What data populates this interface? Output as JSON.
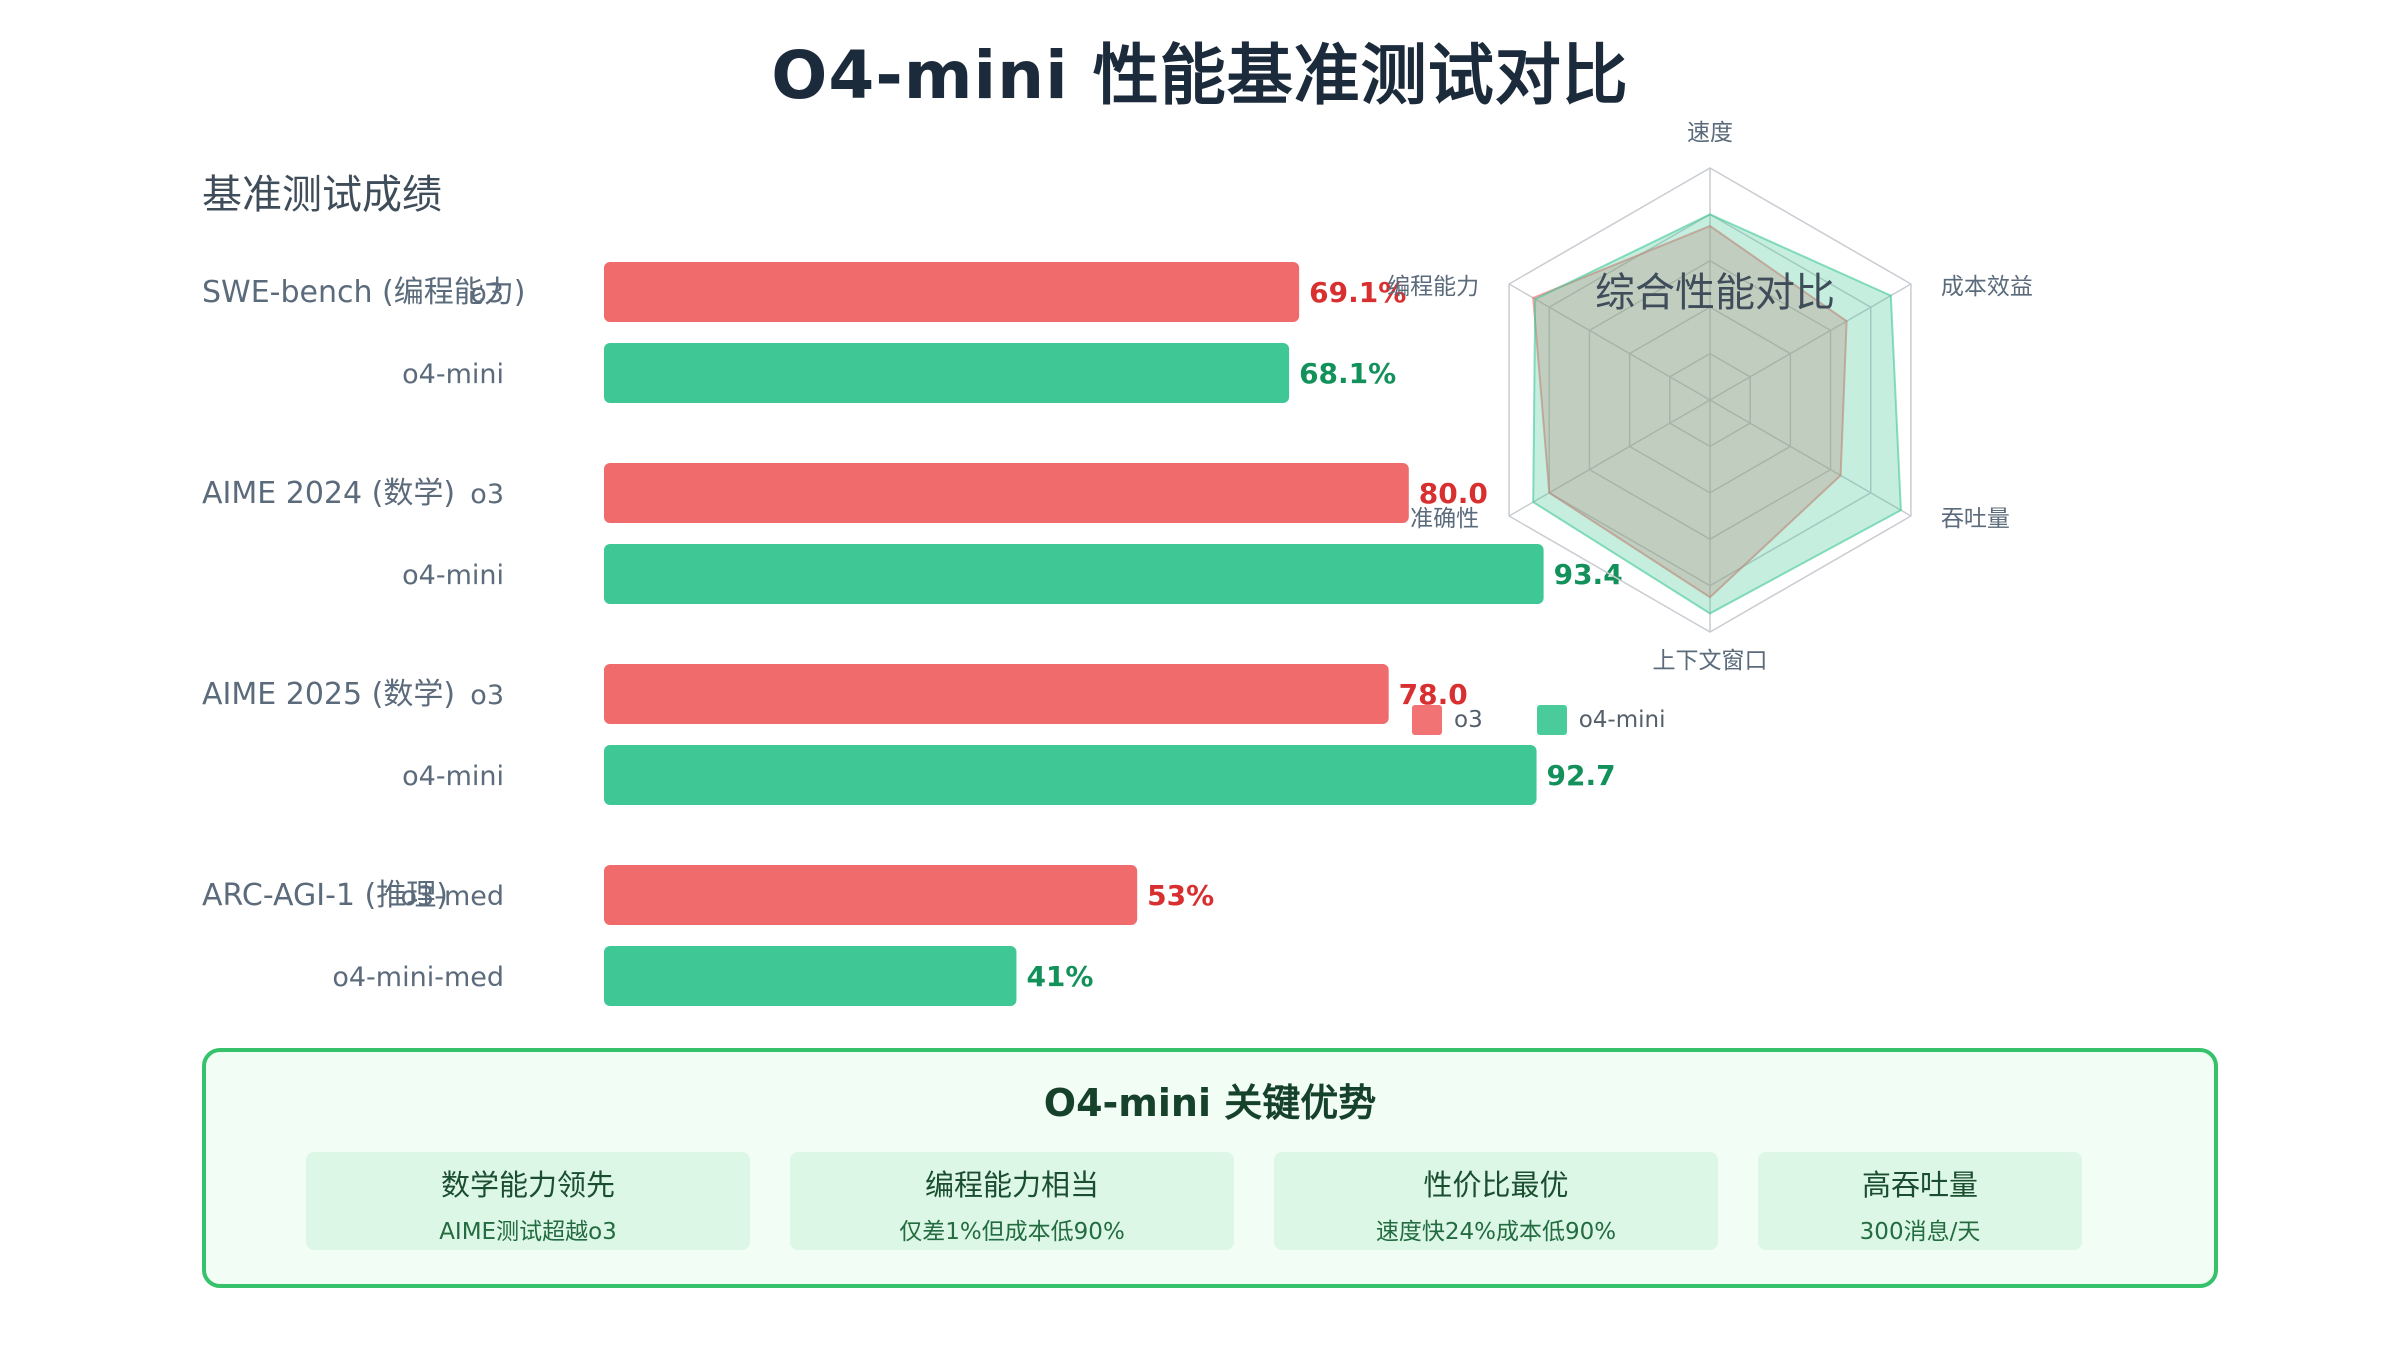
{
  "page": {
    "title": "O4-mini 性能基准测试对比"
  },
  "colors": {
    "o3": "#f06b6b",
    "o4_mini": "#3fc896",
    "o3_text": "#d83030",
    "o4_text": "#12915b"
  },
  "benchmarks": {
    "title": "基准测试成绩",
    "groups": [
      {
        "name": "SWE-bench (编程能力)",
        "bars": [
          {
            "label": "o3",
            "value": 69.1,
            "display": "69.1%",
            "series": "o3"
          },
          {
            "label": "o4-mini",
            "value": 68.1,
            "display": "68.1%",
            "series": "o4"
          }
        ]
      },
      {
        "name": "AIME 2024 (数学)",
        "bars": [
          {
            "label": "o3",
            "value": 80.0,
            "display": "80.0",
            "series": "o3"
          },
          {
            "label": "o4-mini",
            "value": 93.4,
            "display": "93.4",
            "series": "o4"
          }
        ]
      },
      {
        "name": "AIME 2025 (数学)",
        "bars": [
          {
            "label": "o3",
            "value": 78.0,
            "display": "78.0",
            "series": "o3"
          },
          {
            "label": "o4-mini",
            "value": 92.7,
            "display": "92.7",
            "series": "o4"
          }
        ]
      },
      {
        "name": "ARC-AGI-1 (推理)",
        "bars": [
          {
            "label": "o3-med",
            "value": 53,
            "display": "53%",
            "series": "o3"
          },
          {
            "label": "o4-mini-med",
            "value": 41,
            "display": "41%",
            "series": "o4"
          }
        ]
      }
    ]
  },
  "radar": {
    "title": "综合性能对比",
    "axes": [
      "速度",
      "成本效益",
      "吞吐量",
      "上下文窗口",
      "准确性",
      "编程能力"
    ]
  },
  "legend": [
    {
      "label": "o3",
      "series": "o3"
    },
    {
      "label": "o4-mini",
      "series": "o4"
    }
  ],
  "advantages": {
    "title": "O4-mini 关键优势",
    "cards": [
      {
        "title": "数学能力领先",
        "subtitle": "AIME测试超越o3"
      },
      {
        "title": "编程能力相当",
        "subtitle": "仅差1%但成本低90%"
      },
      {
        "title": "性价比最优",
        "subtitle": "速度快24%成本低90%"
      },
      {
        "title": "高吞吐量",
        "subtitle": "300消息/天"
      }
    ]
  },
  "chart_data": [
    {
      "type": "bar",
      "orientation": "horizontal",
      "title": "基准测试成绩",
      "categories": [
        "SWE-bench (编程能力)",
        "AIME 2024 (数学)",
        "AIME 2025 (数学)",
        "ARC-AGI-1 (推理)"
      ],
      "series": [
        {
          "name": "o3",
          "values": [
            69.1,
            80.0,
            78.0,
            53
          ]
        },
        {
          "name": "o4-mini",
          "values": [
            68.1,
            93.4,
            92.7,
            41
          ]
        }
      ],
      "bar_labels": [
        [
          "o3",
          "o4-mini"
        ],
        [
          "o3",
          "o4-mini"
        ],
        [
          "o3",
          "o4-mini"
        ],
        [
          "o3-med",
          "o4-mini-med"
        ]
      ],
      "legend": "none"
    },
    {
      "type": "radar",
      "title": "综合性能对比",
      "axes": [
        "速度",
        "成本效益",
        "吞吐量",
        "上下文窗口",
        "准确性",
        "编程能力"
      ],
      "rmax": 100,
      "grid": true,
      "legend": "bottom",
      "series": [
        {
          "name": "o3",
          "values": [
            75,
            68,
            65,
            85,
            80,
            88
          ]
        },
        {
          "name": "o4-mini",
          "values": [
            80,
            90,
            95,
            92,
            88,
            87
          ]
        }
      ]
    }
  ]
}
